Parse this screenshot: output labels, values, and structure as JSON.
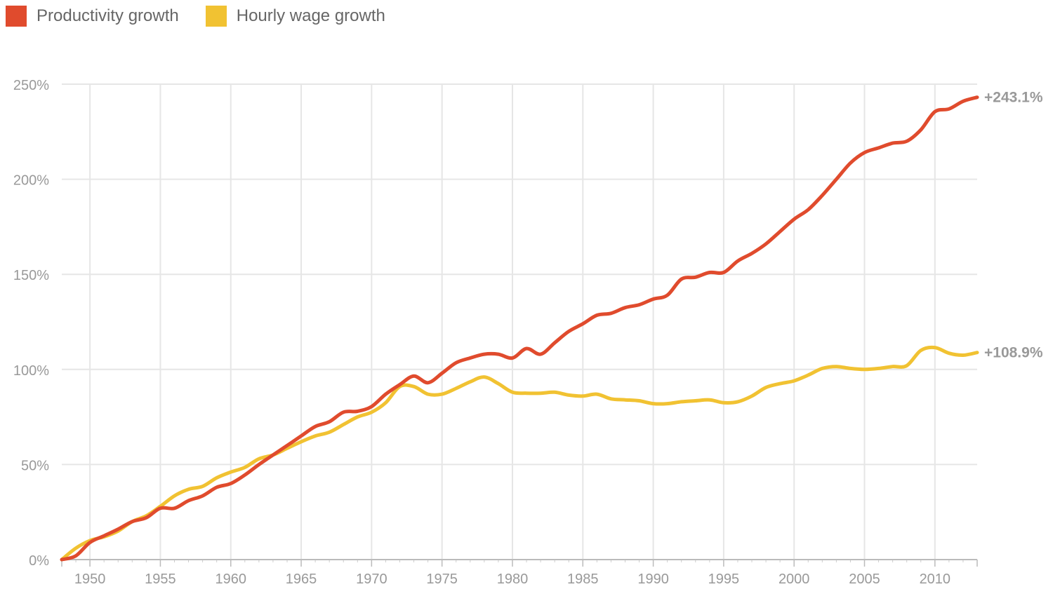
{
  "chart_data": {
    "type": "line",
    "title": "",
    "xlabel": "",
    "ylabel": "",
    "xlim": [
      1948,
      2013
    ],
    "ylim": [
      0,
      250
    ],
    "x_ticks": [
      1950,
      1955,
      1960,
      1965,
      1970,
      1975,
      1980,
      1985,
      1990,
      1995,
      2000,
      2005,
      2010
    ],
    "y_ticks": [
      0,
      50,
      100,
      150,
      200,
      250
    ],
    "y_tick_suffix": "%",
    "grid": true,
    "legend_position": "top-left",
    "x": [
      1948,
      1949,
      1950,
      1951,
      1952,
      1953,
      1954,
      1955,
      1956,
      1957,
      1958,
      1959,
      1960,
      1961,
      1962,
      1963,
      1964,
      1965,
      1966,
      1967,
      1968,
      1969,
      1970,
      1971,
      1972,
      1973,
      1974,
      1975,
      1976,
      1977,
      1978,
      1979,
      1980,
      1981,
      1982,
      1983,
      1984,
      1985,
      1986,
      1987,
      1988,
      1989,
      1990,
      1991,
      1992,
      1993,
      1994,
      1995,
      1996,
      1997,
      1998,
      1999,
      2000,
      2001,
      2002,
      2003,
      2004,
      2005,
      2006,
      2007,
      2008,
      2009,
      2010,
      2011,
      2012,
      2013
    ],
    "series": [
      {
        "name": "Productivity growth",
        "color": "#e04b2d",
        "end_label": "+243.1%",
        "values": [
          0,
          2,
          9,
          12.5,
          16,
          20,
          22,
          27,
          27,
          31,
          33.5,
          38,
          40,
          44.5,
          50,
          55,
          60,
          65,
          70,
          72.5,
          77.5,
          78,
          80.5,
          87,
          92,
          96.5,
          93,
          98,
          103.5,
          106,
          108,
          108,
          106,
          111,
          108,
          114,
          120,
          124,
          128.5,
          129.5,
          132.5,
          134,
          137,
          139,
          147.5,
          148.5,
          151,
          151,
          157,
          161,
          166,
          172.5,
          179,
          184,
          191.5,
          200,
          208.5,
          214,
          216.5,
          219,
          220,
          226,
          235.5,
          237,
          241,
          243.1
        ]
      },
      {
        "name": "Hourly wage growth",
        "color": "#f1c232",
        "end_label": "+108.9%",
        "values": [
          0,
          6,
          10,
          12,
          15,
          20,
          23,
          28,
          33.5,
          37,
          38.5,
          43,
          46,
          48.5,
          53,
          55,
          58.5,
          62,
          65,
          67,
          71,
          75,
          77.5,
          82.5,
          91,
          91,
          87,
          87,
          90,
          93.5,
          96,
          92.5,
          88,
          87.5,
          87.5,
          88,
          86.5,
          86,
          87,
          84.5,
          84,
          83.5,
          82,
          82,
          83,
          83.5,
          84,
          82.5,
          83,
          86,
          90.5,
          92.5,
          94,
          97,
          100.5,
          101.5,
          100.5,
          100,
          100.5,
          101.5,
          102,
          110,
          111.5,
          108.5,
          107.5,
          108.9
        ]
      }
    ]
  }
}
